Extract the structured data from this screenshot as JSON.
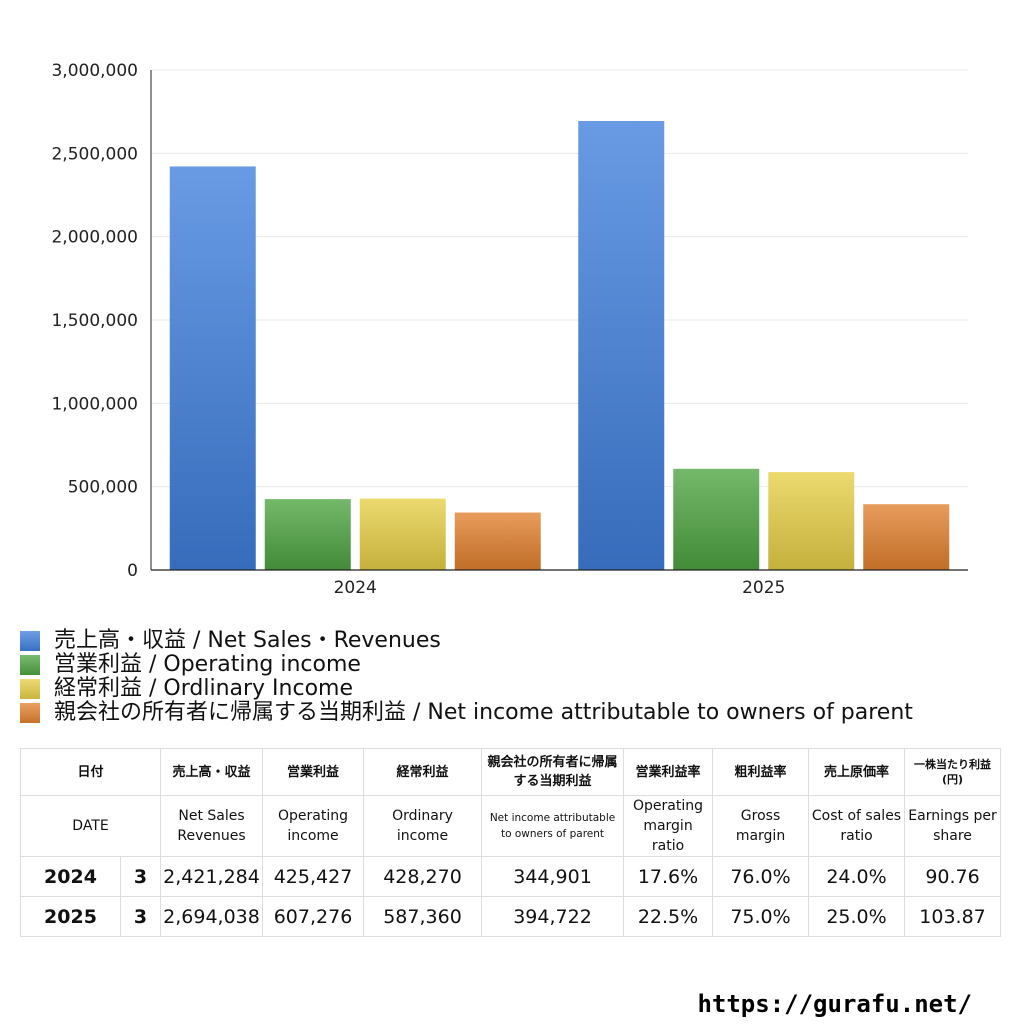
{
  "chart_data": {
    "type": "bar",
    "categories": [
      "2024",
      "2025"
    ],
    "series": [
      {
        "name": "売上高・収益 / Net Sales・Revenues",
        "color": "#3f7fdc",
        "values": [
          2421284,
          2694038
        ]
      },
      {
        "name": "営業利益 / Operating income",
        "color": "#4ea441",
        "values": [
          425427,
          607276
        ]
      },
      {
        "name": "経常利益 / Ordlinary Income",
        "color": "#e6cf46",
        "values": [
          428270,
          587360
        ]
      },
      {
        "name": "親会社の所有者に帰属する当期利益 / Net income attributable to owners of parent",
        "color": "#e2802e",
        "values": [
          344901,
          394722
        ]
      }
    ],
    "ylim": [
      0,
      3000000
    ],
    "yticks": [
      0,
      500000,
      1000000,
      1500000,
      2000000,
      2500000,
      3000000
    ],
    "ytick_labels": [
      "0",
      "500,000",
      "1,000,000",
      "1,500,000",
      "2,000,000",
      "2,500,000",
      "3,000,000"
    ],
    "grid": true,
    "legend": "bottom"
  },
  "table": {
    "headers_jp": [
      "日付",
      "売上高・収益",
      "営業利益",
      "経常利益",
      "親会社の所有者に帰属する当期利益",
      "営業利益率",
      "粗利益率",
      "売上原価率",
      "一株当たり利益 (円)"
    ],
    "headers_en": [
      "DATE",
      "Net Sales Revenues",
      "Operating income",
      "Ordinary income",
      "Net income attributable to owners of parent",
      "Operating margin ratio",
      "Gross margin",
      "Cost of sales ratio",
      "Earnings per share"
    ],
    "rows": [
      {
        "year": "2024",
        "month": "3",
        "sales": "2,421,284",
        "operating": "425,427",
        "ordinary": "428,270",
        "net": "344,901",
        "op_margin": "17.6%",
        "gross_margin": "76.0%",
        "cost_ratio": "24.0%",
        "eps": "90.76"
      },
      {
        "year": "2025",
        "month": "3",
        "sales": "2,694,038",
        "operating": "607,276",
        "ordinary": "587,360",
        "net": "394,722",
        "op_margin": "22.5%",
        "gross_margin": "75.0%",
        "cost_ratio": "25.0%",
        "eps": "103.87"
      }
    ]
  },
  "credit": "https://gurafu.net/"
}
